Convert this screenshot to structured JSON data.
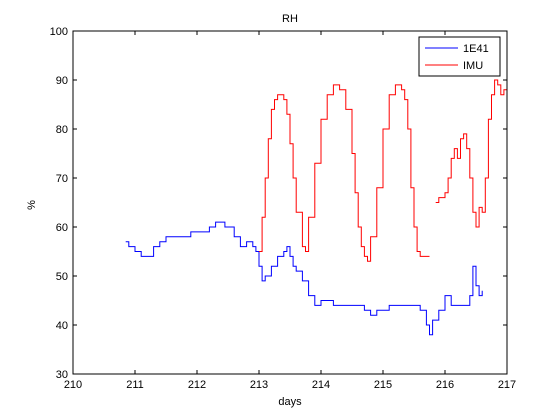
{
  "chart_data": {
    "type": "line",
    "title": "RH",
    "xlabel": "days",
    "ylabel": "%",
    "xlim": [
      210,
      217
    ],
    "ylim": [
      30,
      100
    ],
    "xticks": [
      210,
      211,
      212,
      213,
      214,
      215,
      216,
      217
    ],
    "yticks": [
      30,
      40,
      50,
      60,
      70,
      80,
      90,
      100
    ],
    "grid": false,
    "legend": "top-right",
    "series": [
      {
        "name": "1E41",
        "color": "#0000ff",
        "x": [
          210.85,
          210.9,
          211.0,
          211.1,
          211.2,
          211.3,
          211.4,
          211.5,
          211.6,
          211.7,
          211.8,
          211.9,
          212.0,
          212.1,
          212.2,
          212.3,
          212.4,
          212.45,
          212.5,
          212.6,
          212.7,
          212.8,
          212.9,
          212.95,
          213.0,
          213.05,
          213.1,
          213.2,
          213.3,
          213.4,
          213.45,
          213.5,
          213.55,
          213.6,
          213.7,
          213.8,
          213.9,
          214.0,
          214.1,
          214.2,
          214.3,
          214.4,
          214.5,
          214.6,
          214.7,
          214.8,
          214.9,
          215.0,
          215.1,
          215.2,
          215.3,
          215.4,
          215.5,
          215.6,
          215.7,
          215.75,
          215.8,
          215.9,
          216.0,
          216.1,
          216.2,
          216.3,
          216.4,
          216.45,
          216.5,
          216.55,
          216.6
        ],
        "y": [
          57,
          56,
          55,
          54,
          54,
          56,
          57,
          58,
          58,
          58,
          58,
          59,
          59,
          59,
          60,
          61,
          61,
          60,
          60,
          58,
          56,
          57,
          56,
          55,
          52,
          49,
          50,
          52,
          54,
          55,
          56,
          54,
          52,
          51,
          49,
          46,
          44,
          45,
          45,
          44,
          44,
          44,
          44,
          44,
          43,
          42,
          43,
          43,
          44,
          44,
          44,
          44,
          44,
          43,
          40,
          38,
          41,
          43,
          46,
          44,
          44,
          44,
          46,
          52,
          48,
          46,
          47
        ]
      },
      {
        "name": "IMU",
        "color": "#ff0000",
        "x": [
          213.0,
          213.05,
          213.1,
          213.15,
          213.2,
          213.25,
          213.3,
          213.4,
          213.45,
          213.5,
          213.55,
          213.6,
          213.7,
          213.75,
          213.8,
          213.9,
          214.0,
          214.1,
          214.2,
          214.3,
          214.4,
          214.5,
          214.55,
          214.6,
          214.65,
          214.7,
          214.75,
          214.8,
          214.9,
          215.0,
          215.1,
          215.2,
          215.3,
          215.35,
          215.4,
          215.45,
          215.5,
          215.55,
          215.6,
          215.65,
          215.7,
          215.75
        ],
        "y": [
          55,
          62,
          70,
          78,
          84,
          86,
          87,
          86,
          83,
          77,
          70,
          63,
          56,
          55,
          62,
          73,
          82,
          87,
          89,
          88,
          84,
          75,
          67,
          60,
          56,
          54,
          53,
          58,
          68,
          80,
          87,
          89,
          88,
          86,
          80,
          68,
          60,
          55,
          54,
          54,
          54,
          54
        ]
      },
      {
        "name": "IMU",
        "color": "#ff0000",
        "x": [
          215.85,
          215.9,
          216.0,
          216.05,
          216.1,
          216.15,
          216.2,
          216.25,
          216.3,
          216.35,
          216.4,
          216.45,
          216.5,
          216.55,
          216.6,
          216.65,
          216.7,
          216.75,
          216.8,
          216.85,
          216.9,
          216.95,
          217.0
        ],
        "y": [
          65,
          66,
          67,
          70,
          74,
          76,
          74,
          78,
          79,
          76,
          70,
          63,
          60,
          64,
          63,
          70,
          82,
          87,
          90,
          89,
          87,
          88,
          88
        ]
      }
    ]
  }
}
